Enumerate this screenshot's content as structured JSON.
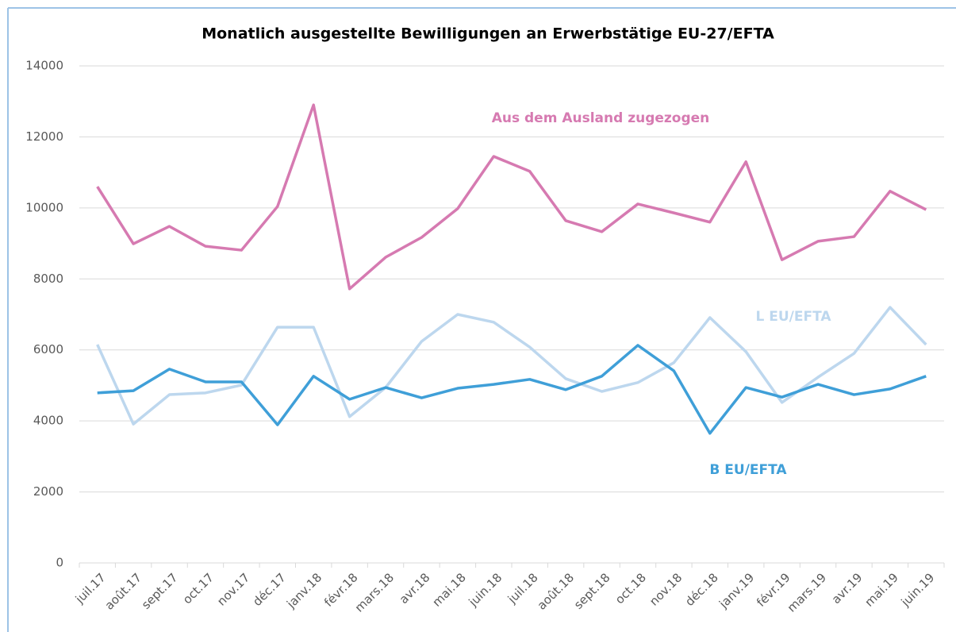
{
  "chart_data": {
    "type": "line",
    "title": "Monatlich ausgestellte Bewilligungen an Erwerbstätige EU-27/EFTA",
    "categories": [
      "juil.17",
      "août.17",
      "sept.17",
      "oct.17",
      "nov.17",
      "déc.17",
      "janv.18",
      "févr.18",
      "mars.18",
      "avr.18",
      "mai.18",
      "juin.18",
      "juil.18",
      "août.18",
      "sept.18",
      "oct.18",
      "nov.18",
      "déc.18",
      "janv.19",
      "févr.19",
      "mars.19",
      "avr.19",
      "mai.19",
      "juin.19"
    ],
    "series": [
      {
        "name": "Aus dem Ausland zugezogen",
        "color": "#d67ab1",
        "values": [
          10600,
          8990,
          9480,
          8920,
          8810,
          10040,
          12900,
          7720,
          8610,
          9170,
          9980,
          11450,
          11030,
          9640,
          9330,
          10110,
          9860,
          9600,
          11300,
          8540,
          9060,
          9190,
          10470,
          9950
        ]
      },
      {
        "name": "L EU/EFTA",
        "color": "#bdd7ee",
        "values": [
          6150,
          3910,
          4740,
          4790,
          5010,
          6640,
          6640,
          4120,
          4940,
          6240,
          7000,
          6780,
          6080,
          5190,
          4830,
          5080,
          5640,
          6910,
          5950,
          4520,
          5230,
          5900,
          7200,
          6150
        ]
      },
      {
        "name": "B EU/EFTA",
        "color": "#3f9fd8",
        "values": [
          4790,
          4850,
          5460,
          5100,
          5100,
          3890,
          5260,
          4610,
          4940,
          4650,
          4920,
          5030,
          5170,
          4880,
          5260,
          6130,
          5410,
          3650,
          4940,
          4670,
          5030,
          4740,
          4900,
          5260
        ]
      }
    ],
    "ylim": [
      0,
      14000
    ],
    "yticks": [
      0,
      2000,
      4000,
      6000,
      8000,
      10000,
      12000,
      14000
    ],
    "grid": true
  }
}
